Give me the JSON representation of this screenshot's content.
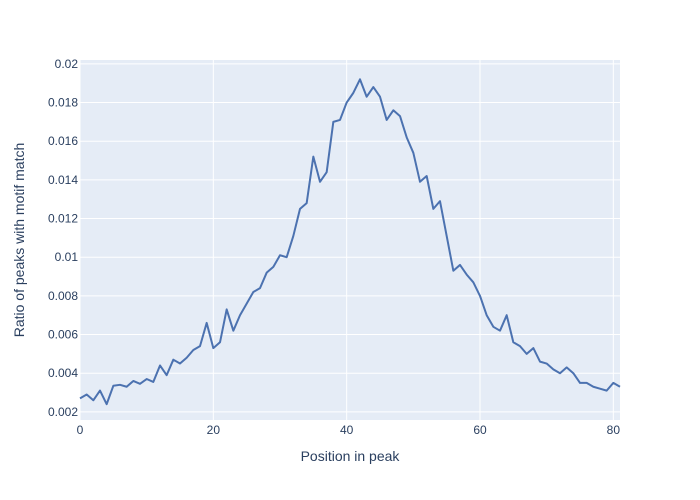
{
  "chart_data": {
    "type": "line",
    "xlabel": "Position in peak",
    "ylabel": "Ratio of peaks with motif match",
    "xlim": [
      0,
      81
    ],
    "ylim": [
      0.00158,
      0.0202
    ],
    "xticks": [
      0,
      20,
      40,
      60,
      80
    ],
    "yticks": [
      0.002,
      0.004,
      0.006,
      0.008,
      0.01,
      0.012,
      0.014,
      0.016,
      0.018,
      0.02
    ],
    "xtick_labels": [
      "0",
      "20",
      "40",
      "60",
      "80"
    ],
    "ytick_labels": [
      "0.002",
      "0.004",
      "0.006",
      "0.008",
      "0.01",
      "0.012",
      "0.014",
      "0.016",
      "0.018",
      "0.02"
    ],
    "grid": true,
    "plot_bgcolor": "#e5ecf6",
    "line_color": "#4c72b0",
    "x": [
      0,
      1,
      2,
      3,
      4,
      5,
      6,
      7,
      8,
      9,
      10,
      11,
      12,
      13,
      14,
      15,
      16,
      17,
      18,
      19,
      20,
      21,
      22,
      23,
      24,
      25,
      26,
      27,
      28,
      29,
      30,
      31,
      32,
      33,
      34,
      35,
      36,
      37,
      38,
      39,
      40,
      41,
      42,
      43,
      44,
      45,
      46,
      47,
      48,
      49,
      50,
      51,
      52,
      53,
      54,
      55,
      56,
      57,
      58,
      59,
      60,
      61,
      62,
      63,
      64,
      65,
      66,
      67,
      68,
      69,
      70,
      71,
      72,
      73,
      74,
      75,
      76,
      77,
      78,
      79,
      80,
      81
    ],
    "y": [
      0.0027,
      0.0029,
      0.0026,
      0.0031,
      0.0024,
      0.00335,
      0.0034,
      0.0033,
      0.0036,
      0.00345,
      0.0037,
      0.00355,
      0.0044,
      0.0039,
      0.0047,
      0.0045,
      0.0048,
      0.0052,
      0.0054,
      0.0066,
      0.0053,
      0.0056,
      0.0073,
      0.0062,
      0.007,
      0.0076,
      0.0082,
      0.0084,
      0.0092,
      0.0095,
      0.0101,
      0.01,
      0.0111,
      0.0125,
      0.0128,
      0.0152,
      0.0139,
      0.0144,
      0.017,
      0.0171,
      0.018,
      0.0185,
      0.0192,
      0.0183,
      0.0188,
      0.0183,
      0.0171,
      0.0176,
      0.0173,
      0.0162,
      0.0154,
      0.0139,
      0.0142,
      0.0125,
      0.0129,
      0.0111,
      0.0093,
      0.0096,
      0.0091,
      0.0087,
      0.008,
      0.007,
      0.0064,
      0.0062,
      0.007,
      0.0056,
      0.0054,
      0.005,
      0.0053,
      0.0046,
      0.0045,
      0.0042,
      0.004,
      0.0043,
      0.004,
      0.0035,
      0.0035,
      0.0033,
      0.0032,
      0.0031,
      0.0035,
      0.0033
    ]
  }
}
